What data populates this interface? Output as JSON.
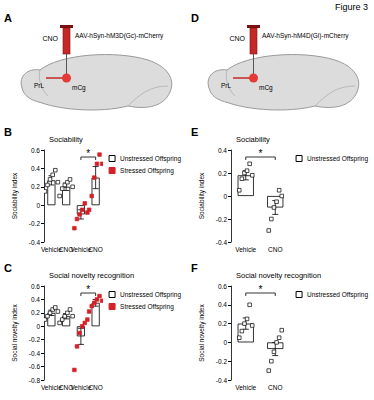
{
  "figure_title": "Figure 3",
  "schematics": [
    {
      "panel": "A",
      "drug": "CNO",
      "virus": "AAV-hSyn-hM3D(Gc)-mCherry",
      "regions": [
        "PrL",
        "mCg"
      ]
    },
    {
      "panel": "D",
      "drug": "CNO",
      "virus": "AAV-hSyn-hM4D(Gi)-mCherry",
      "regions": [
        "PrL",
        "mCg"
      ]
    }
  ],
  "chart_data": [
    {
      "panel": "B",
      "type": "bar",
      "title": "Sociability",
      "y_label": "Sociability index",
      "categories": [
        "Vehicle",
        "CNO",
        "Vehicle",
        "CNO"
      ],
      "ylim": [
        -0.4,
        0.6
      ],
      "yticks": [
        -0.4,
        -0.2,
        0,
        0.2,
        0.4,
        0.6
      ],
      "grid": false,
      "legend": "right",
      "series": [
        {
          "name": "Unstressed Offspring",
          "color": "#000000",
          "marker": "square-open",
          "values": [
            0.27,
            0.2,
            null,
            null
          ],
          "errors": [
            0.05,
            0.04,
            null,
            null
          ],
          "points": [
            [
              0.15,
              0.22,
              0.28,
              0.33,
              0.38,
              0.25
            ],
            [
              0.1,
              0.18,
              0.22,
              0.25,
              0.28,
              0.2
            ],
            null,
            null
          ]
        },
        {
          "name": "Stressed Offspring",
          "color": "#d62027",
          "marker": "square",
          "values": [
            null,
            null,
            -0.1,
            0.3
          ],
          "errors": [
            null,
            null,
            0.05,
            0.12
          ],
          "points": [
            null,
            null,
            [
              -0.25,
              -0.15,
              -0.1,
              -0.05,
              0.02,
              -0.08
            ],
            [
              -0.05,
              0.1,
              0.3,
              0.45,
              0.55,
              0.45
            ]
          ]
        }
      ],
      "significance": [
        {
          "from": 2,
          "to": 3,
          "label": "*"
        }
      ]
    },
    {
      "panel": "C",
      "type": "bar",
      "title": "Social novelty recognition",
      "y_label": "Social novelty index",
      "categories": [
        "Vehicle",
        "CNO",
        "Vehicle",
        "CNO"
      ],
      "ylim": [
        -0.8,
        0.6
      ],
      "yticks": [
        -0.8,
        -0.6,
        -0.4,
        -0.2,
        0,
        0.2,
        0.4,
        0.6
      ],
      "grid": false,
      "legend": "right",
      "series": [
        {
          "name": "Unstressed Offspring",
          "color": "#000000",
          "marker": "square-open",
          "values": [
            0.2,
            0.15,
            null,
            null
          ],
          "errors": [
            0.04,
            0.04,
            null,
            null
          ],
          "points": [
            [
              0.1,
              0.15,
              0.2,
              0.25,
              0.28,
              0.22
            ],
            [
              0.05,
              0.1,
              0.15,
              0.2,
              0.25,
              0.15
            ],
            null,
            null
          ]
        },
        {
          "name": "Stressed Offspring",
          "color": "#d62027",
          "marker": "square",
          "values": [
            null,
            null,
            -0.15,
            0.35
          ],
          "errors": [
            null,
            null,
            0.12,
            0.05
          ],
          "points": [
            null,
            null,
            [
              -0.65,
              -0.3,
              -0.1,
              0.0,
              0.05,
              0.1
            ],
            [
              0.22,
              0.3,
              0.35,
              0.4,
              0.45,
              0.38
            ]
          ]
        }
      ],
      "significance": [
        {
          "from": 2,
          "to": 3,
          "label": "*"
        }
      ]
    },
    {
      "panel": "E",
      "type": "bar",
      "title": "Sociability",
      "y_label": "Sociability index",
      "categories": [
        "Vehicle",
        "CNO"
      ],
      "ylim": [
        -0.4,
        0.4
      ],
      "yticks": [
        -0.4,
        -0.2,
        0,
        0.2,
        0.4
      ],
      "grid": false,
      "legend": "right",
      "series": [
        {
          "name": "Unstressed Offspring",
          "color": "#000000",
          "marker": "square-open",
          "values": [
            0.18,
            -0.1
          ],
          "errors": [
            0.04,
            0.06
          ],
          "points": [
            [
              0.05,
              0.15,
              0.2,
              0.22,
              0.28,
              0.18
            ],
            [
              -0.3,
              -0.2,
              -0.1,
              -0.05,
              0.05,
              0.0
            ]
          ]
        }
      ],
      "significance": [
        {
          "from": 0,
          "to": 1,
          "label": "*"
        }
      ]
    },
    {
      "panel": "F",
      "type": "bar",
      "title": "Social novelty recognition",
      "y_label": "Social novelty index",
      "categories": [
        "Vehicle",
        "CNO"
      ],
      "ylim": [
        -0.4,
        0.6
      ],
      "yticks": [
        -0.4,
        -0.2,
        0,
        0.2,
        0.4,
        0.6
      ],
      "grid": false,
      "legend": "right",
      "series": [
        {
          "name": "Unstressed Offspring",
          "color": "#000000",
          "marker": "square-open",
          "values": [
            0.2,
            -0.07
          ],
          "errors": [
            0.06,
            0.07
          ],
          "points": [
            [
              0.05,
              0.12,
              0.2,
              0.25,
              0.4,
              0.18
            ],
            [
              -0.3,
              -0.2,
              -0.1,
              0.0,
              0.05,
              0.13
            ]
          ]
        }
      ],
      "significance": [
        {
          "from": 0,
          "to": 1,
          "label": "*"
        }
      ]
    }
  ]
}
